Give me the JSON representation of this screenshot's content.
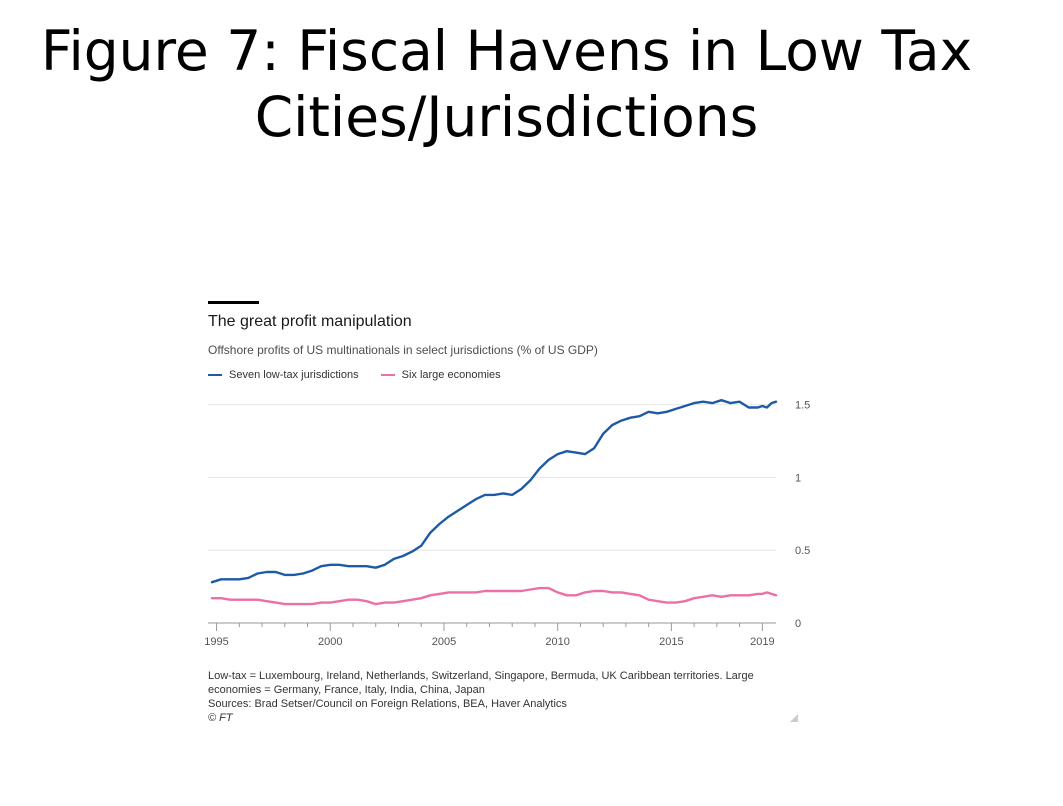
{
  "slide": {
    "title_line1": "Figure 7: Fiscal Havens in Low Tax",
    "title_line2": "Cities/Jurisdictions"
  },
  "footnote": {
    "definition": "Low-tax = Luxembourg, Ireland, Netherlands, Switzerland, Singapore, Bermuda, UK Caribbean territories. Large economies = Germany, France, Italy, India, China, Japan",
    "sources": "Sources: Brad Setser/Council on Foreign Relations, BEA, Haver Analytics",
    "copyright": "© FT"
  },
  "colors": {
    "low_tax": "#1f5aa6",
    "large": "#ec6fa6",
    "grid": "#e6e6e6",
    "axis": "#999999"
  },
  "chart_data": {
    "type": "line",
    "title": "The great profit manipulation",
    "subtitle": "Offshore profits of US multinationals in select jurisdictions (% of US GDP)",
    "xlim": [
      1994.8,
      2019.6
    ],
    "ylim": [
      0,
      1.6
    ],
    "x_ticks": [
      1995,
      2000,
      2005,
      2010,
      2015,
      2019
    ],
    "y_ticks": [
      0,
      0.5,
      1,
      1.5
    ],
    "y_axis_position": "right",
    "grid": true,
    "legend": "top-left",
    "series": [
      {
        "name": "Seven low-tax jurisdictions",
        "color": "#1f5aa6",
        "points": [
          [
            1994.8,
            0.28
          ],
          [
            1995.2,
            0.3
          ],
          [
            1995.6,
            0.3
          ],
          [
            1996.0,
            0.3
          ],
          [
            1996.4,
            0.31
          ],
          [
            1996.8,
            0.34
          ],
          [
            1997.2,
            0.35
          ],
          [
            1997.6,
            0.35
          ],
          [
            1998.0,
            0.33
          ],
          [
            1998.4,
            0.33
          ],
          [
            1998.8,
            0.34
          ],
          [
            1999.2,
            0.36
          ],
          [
            1999.6,
            0.39
          ],
          [
            2000.0,
            0.4
          ],
          [
            2000.4,
            0.4
          ],
          [
            2000.8,
            0.39
          ],
          [
            2001.2,
            0.39
          ],
          [
            2001.6,
            0.39
          ],
          [
            2002.0,
            0.38
          ],
          [
            2002.4,
            0.4
          ],
          [
            2002.8,
            0.44
          ],
          [
            2003.2,
            0.46
          ],
          [
            2003.6,
            0.49
          ],
          [
            2004.0,
            0.53
          ],
          [
            2004.4,
            0.62
          ],
          [
            2004.8,
            0.68
          ],
          [
            2005.2,
            0.73
          ],
          [
            2005.6,
            0.77
          ],
          [
            2006.0,
            0.81
          ],
          [
            2006.4,
            0.85
          ],
          [
            2006.8,
            0.88
          ],
          [
            2007.2,
            0.88
          ],
          [
            2007.6,
            0.89
          ],
          [
            2008.0,
            0.88
          ],
          [
            2008.4,
            0.92
          ],
          [
            2008.8,
            0.98
          ],
          [
            2009.2,
            1.06
          ],
          [
            2009.6,
            1.12
          ],
          [
            2010.0,
            1.16
          ],
          [
            2010.4,
            1.18
          ],
          [
            2010.8,
            1.17
          ],
          [
            2011.2,
            1.16
          ],
          [
            2011.6,
            1.2
          ],
          [
            2012.0,
            1.3
          ],
          [
            2012.4,
            1.36
          ],
          [
            2012.8,
            1.39
          ],
          [
            2013.2,
            1.41
          ],
          [
            2013.6,
            1.42
          ],
          [
            2014.0,
            1.45
          ],
          [
            2014.4,
            1.44
          ],
          [
            2014.8,
            1.45
          ],
          [
            2015.2,
            1.47
          ],
          [
            2015.6,
            1.49
          ],
          [
            2016.0,
            1.51
          ],
          [
            2016.4,
            1.52
          ],
          [
            2016.8,
            1.51
          ],
          [
            2017.2,
            1.53
          ],
          [
            2017.6,
            1.51
          ],
          [
            2018.0,
            1.52
          ],
          [
            2018.4,
            1.48
          ],
          [
            2018.8,
            1.48
          ],
          [
            2019.0,
            1.49
          ],
          [
            2019.2,
            1.48
          ],
          [
            2019.4,
            1.51
          ],
          [
            2019.6,
            1.52
          ]
        ]
      },
      {
        "name": "Six large economies",
        "color": "#ec6fa6",
        "points": [
          [
            1994.8,
            0.17
          ],
          [
            1995.2,
            0.17
          ],
          [
            1995.6,
            0.16
          ],
          [
            1996.0,
            0.16
          ],
          [
            1996.4,
            0.16
          ],
          [
            1996.8,
            0.16
          ],
          [
            1997.2,
            0.15
          ],
          [
            1997.6,
            0.14
          ],
          [
            1998.0,
            0.13
          ],
          [
            1998.4,
            0.13
          ],
          [
            1998.8,
            0.13
          ],
          [
            1999.2,
            0.13
          ],
          [
            1999.6,
            0.14
          ],
          [
            2000.0,
            0.14
          ],
          [
            2000.4,
            0.15
          ],
          [
            2000.8,
            0.16
          ],
          [
            2001.2,
            0.16
          ],
          [
            2001.6,
            0.15
          ],
          [
            2002.0,
            0.13
          ],
          [
            2002.4,
            0.14
          ],
          [
            2002.8,
            0.14
          ],
          [
            2003.2,
            0.15
          ],
          [
            2003.6,
            0.16
          ],
          [
            2004.0,
            0.17
          ],
          [
            2004.4,
            0.19
          ],
          [
            2004.8,
            0.2
          ],
          [
            2005.2,
            0.21
          ],
          [
            2005.6,
            0.21
          ],
          [
            2006.0,
            0.21
          ],
          [
            2006.4,
            0.21
          ],
          [
            2006.8,
            0.22
          ],
          [
            2007.2,
            0.22
          ],
          [
            2007.6,
            0.22
          ],
          [
            2008.0,
            0.22
          ],
          [
            2008.4,
            0.22
          ],
          [
            2008.8,
            0.23
          ],
          [
            2009.2,
            0.24
          ],
          [
            2009.6,
            0.24
          ],
          [
            2010.0,
            0.21
          ],
          [
            2010.4,
            0.19
          ],
          [
            2010.8,
            0.19
          ],
          [
            2011.2,
            0.21
          ],
          [
            2011.6,
            0.22
          ],
          [
            2012.0,
            0.22
          ],
          [
            2012.4,
            0.21
          ],
          [
            2012.8,
            0.21
          ],
          [
            2013.2,
            0.2
          ],
          [
            2013.6,
            0.19
          ],
          [
            2014.0,
            0.16
          ],
          [
            2014.4,
            0.15
          ],
          [
            2014.8,
            0.14
          ],
          [
            2015.2,
            0.14
          ],
          [
            2015.6,
            0.15
          ],
          [
            2016.0,
            0.17
          ],
          [
            2016.4,
            0.18
          ],
          [
            2016.8,
            0.19
          ],
          [
            2017.2,
            0.18
          ],
          [
            2017.6,
            0.19
          ],
          [
            2018.0,
            0.19
          ],
          [
            2018.4,
            0.19
          ],
          [
            2018.8,
            0.2
          ],
          [
            2019.0,
            0.2
          ],
          [
            2019.2,
            0.21
          ],
          [
            2019.4,
            0.2
          ],
          [
            2019.6,
            0.19
          ]
        ]
      }
    ]
  }
}
